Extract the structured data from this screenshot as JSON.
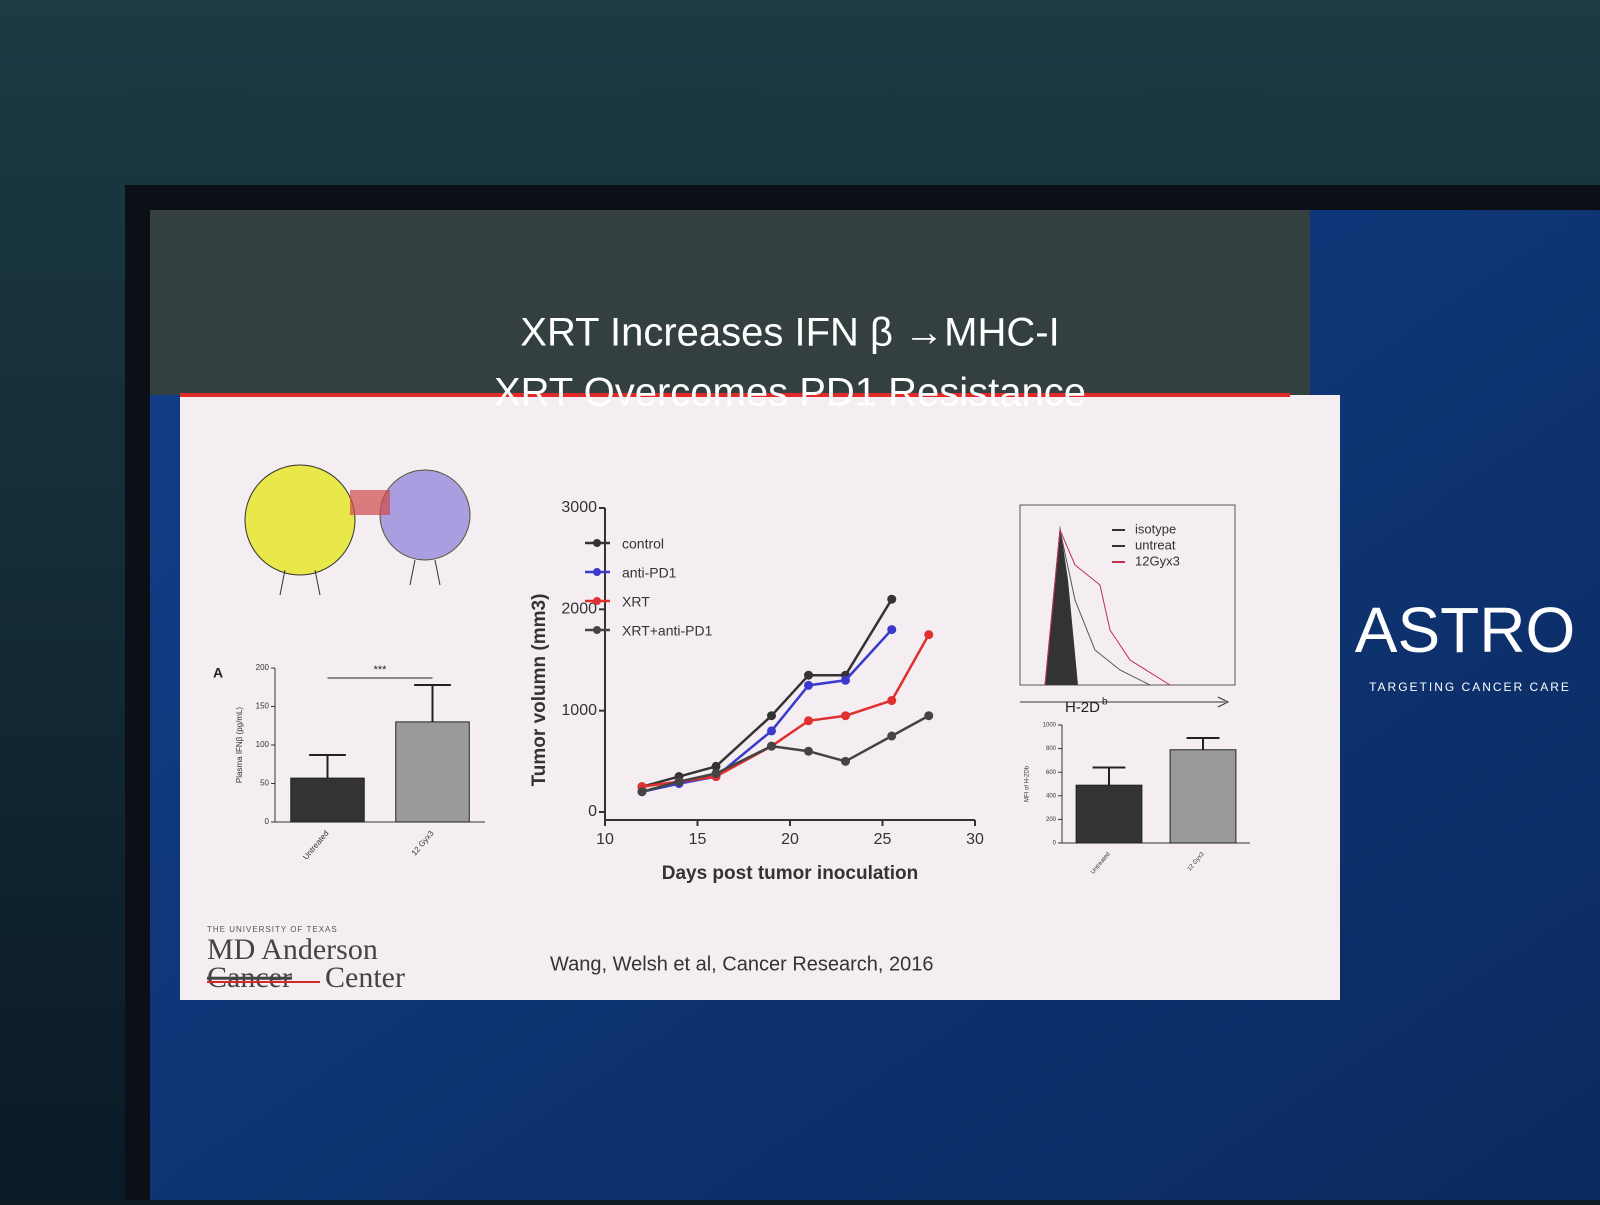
{
  "slide": {
    "title_lines": [
      "XRT  Increases IFN  β →MHC-I",
      "XRT Overcomes PD1 Resistance"
    ],
    "citation": "Wang, Welsh et al, Cancer Research, 2016",
    "institution": {
      "top": "THE UNIVERSITY OF TEXAS",
      "name": "MD Anderson",
      "struck": "Cancer",
      "last": "Center"
    },
    "flow": {
      "legend": [
        "isotype",
        "untreat",
        "12Gyx3"
      ],
      "xlabel": "H-2D",
      "xlabel_sup": "b"
    }
  },
  "brand": {
    "name": "ASTRO",
    "tagline": "TARGETING CANCER CARE"
  },
  "chart_data": [
    {
      "type": "bar",
      "panel": "A",
      "ylabel": "Plasma IFNβ (pg/mL)",
      "categories": [
        "Untreated",
        "12 Gyx3"
      ],
      "values": [
        57,
        130
      ],
      "errors": [
        30,
        48
      ],
      "colors": [
        "#333333",
        "#9a9a9a"
      ],
      "ylim": [
        0,
        200
      ],
      "yticks": [
        0,
        50,
        100,
        150,
        200
      ],
      "annotation": "***"
    },
    {
      "type": "line",
      "ylabel": "Tumor volumn (mm3)",
      "xlabel": "Days post tumor inoculation",
      "x": [
        12,
        14,
        16,
        19,
        21,
        23,
        25.5,
        27.5
      ],
      "xlim": [
        10,
        30
      ],
      "xticks": [
        10,
        15,
        20,
        25,
        30
      ],
      "ylim": [
        0,
        3000
      ],
      "yticks": [
        0,
        1000,
        2000,
        3000
      ],
      "series": [
        {
          "name": "control",
          "color": "#333333",
          "values": [
            250,
            350,
            450,
            950,
            1350,
            1350,
            2100,
            null
          ]
        },
        {
          "name": "anti-PD1",
          "color": "#3a3acc",
          "values": [
            200,
            280,
            350,
            800,
            1250,
            1300,
            1800,
            null
          ]
        },
        {
          "name": "XRT",
          "color": "#e03030",
          "values": [
            250,
            300,
            350,
            650,
            900,
            950,
            1100,
            1750
          ]
        },
        {
          "name": "XRT+anti-PD1",
          "color": "#444444",
          "values": [
            200,
            300,
            380,
            650,
            600,
            500,
            750,
            950
          ]
        }
      ]
    },
    {
      "type": "bar",
      "ylabel": "MFI of H-2Db",
      "categories": [
        "Untreated",
        "12 Gyx3"
      ],
      "values": [
        490,
        790
      ],
      "errors": [
        150,
        100
      ],
      "colors": [
        "#333333",
        "#9a9a9a"
      ],
      "ylim": [
        0,
        1000
      ],
      "yticks": [
        0,
        200,
        400,
        600,
        800,
        1000
      ]
    }
  ]
}
